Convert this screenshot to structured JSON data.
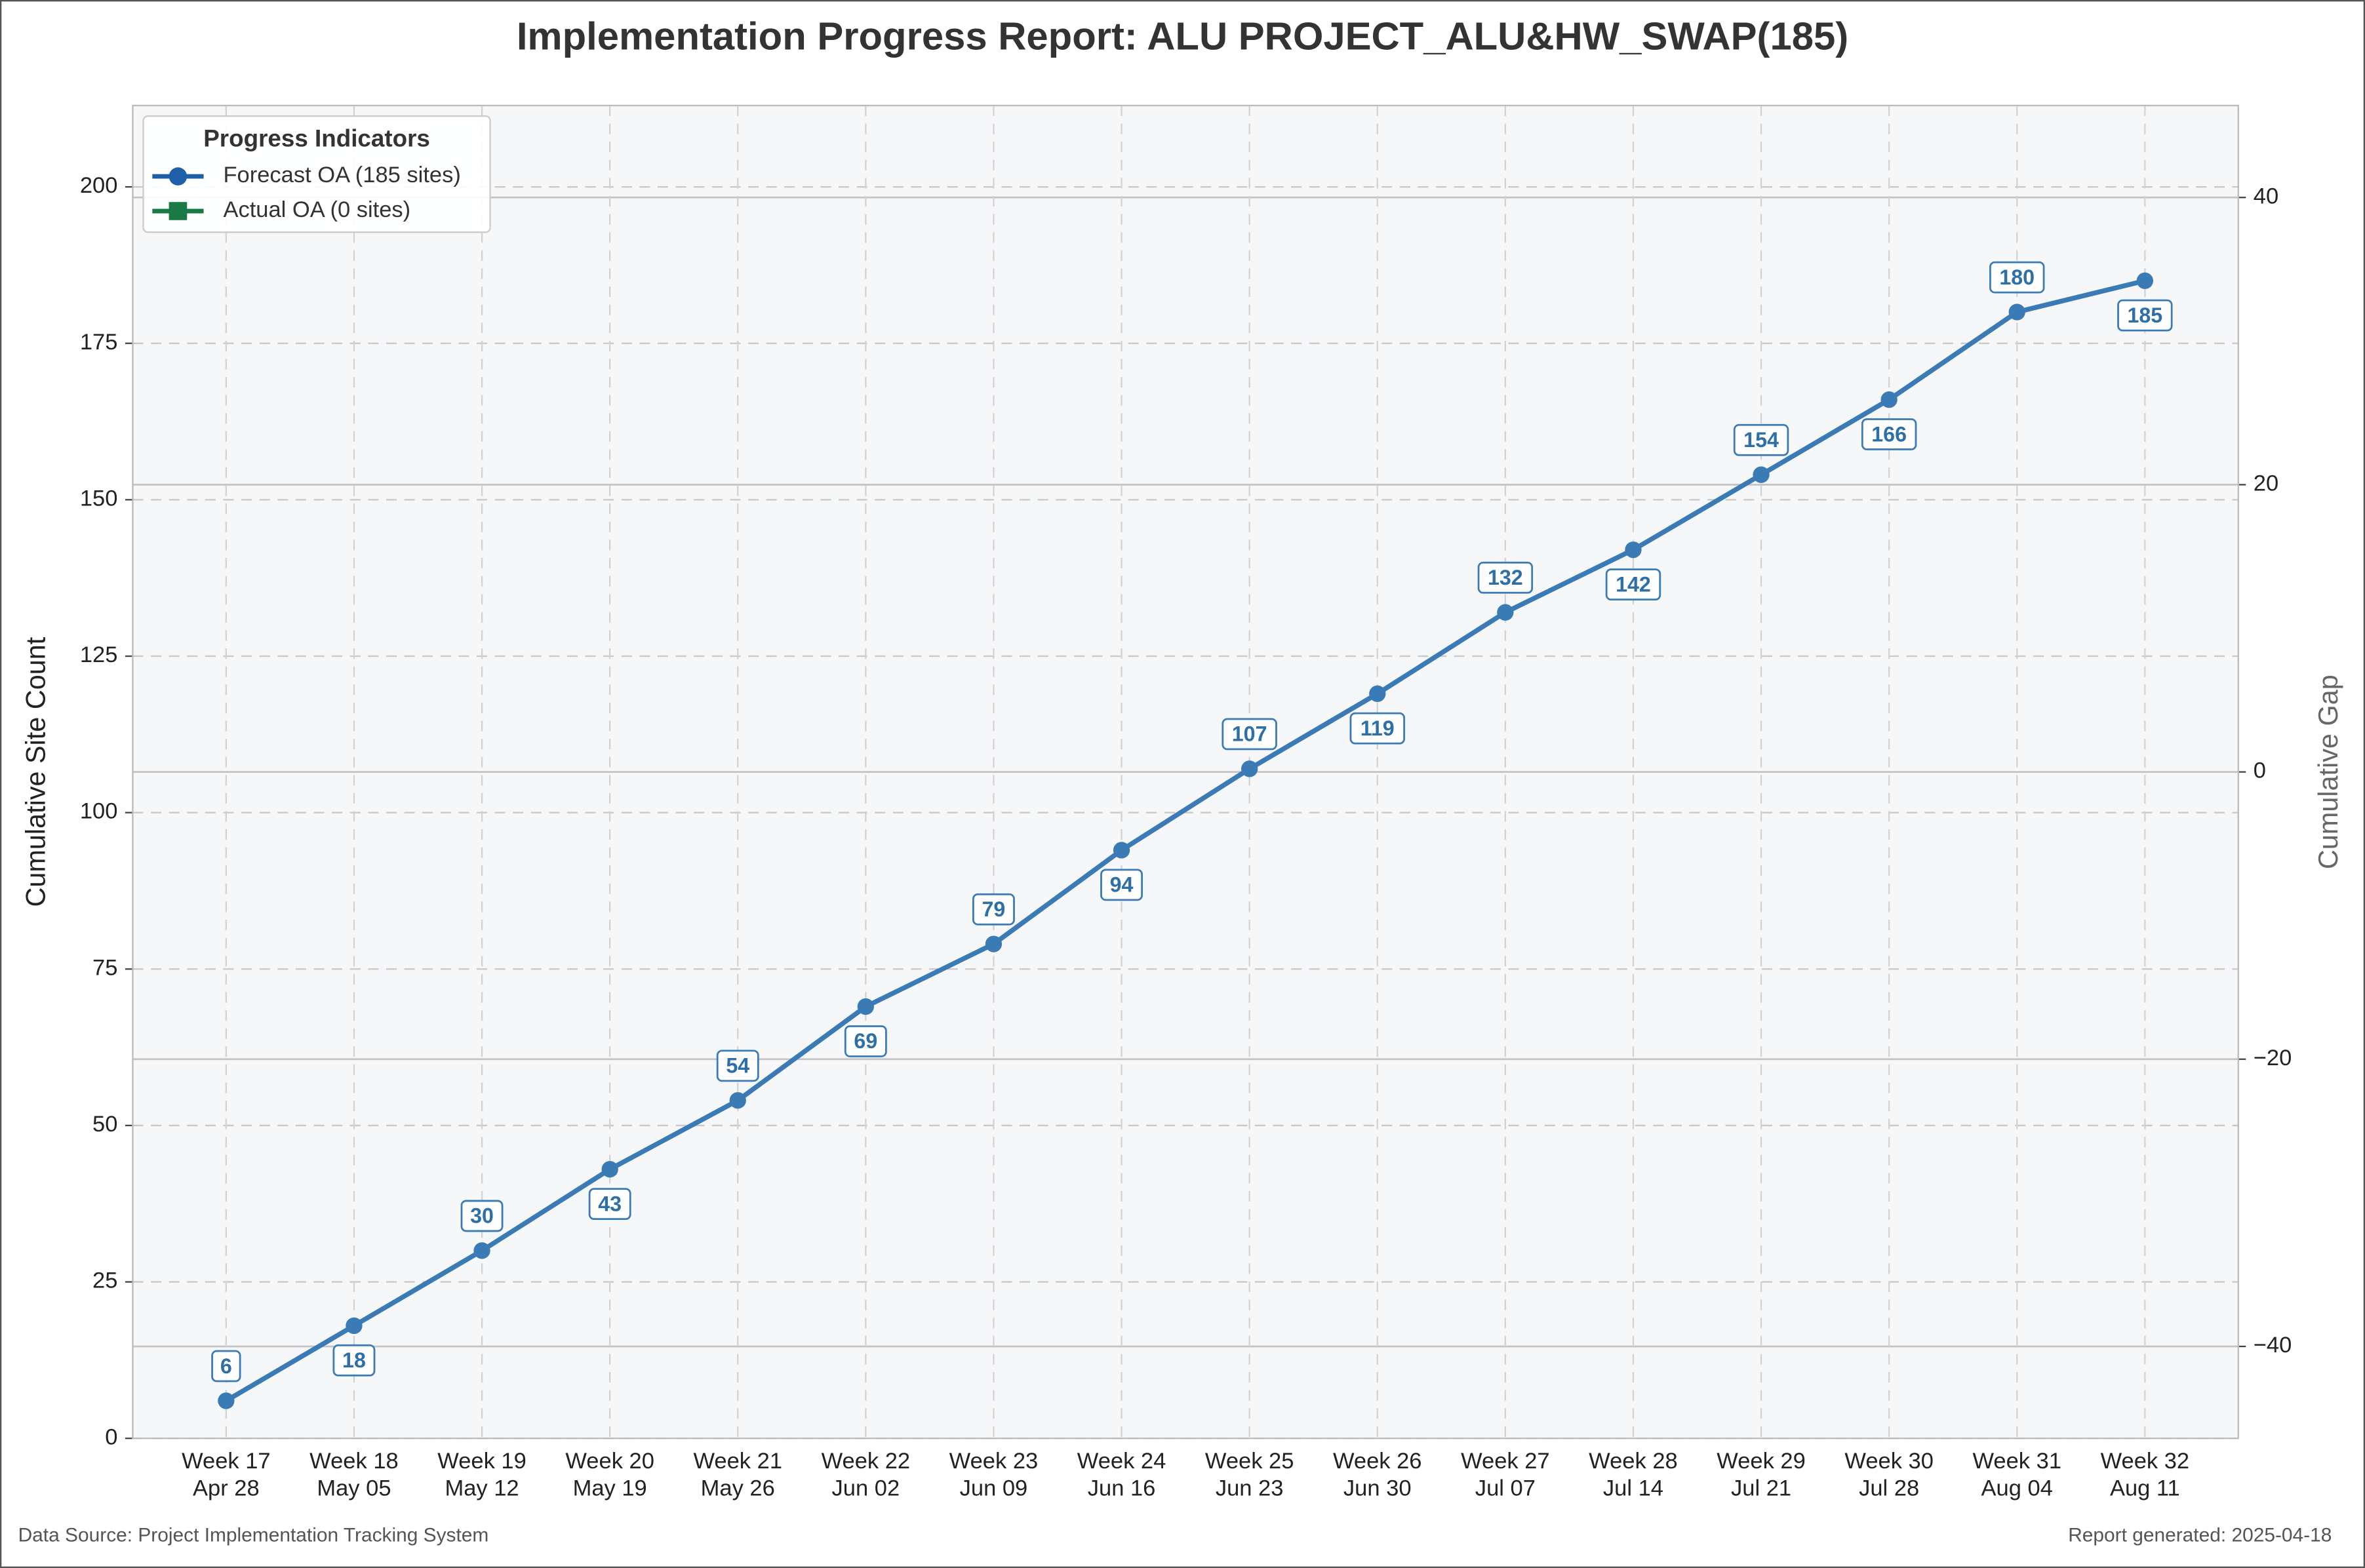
{
  "chart_data": {
    "type": "line",
    "title": "Implementation Progress Report: ALU PROJECT_ALU&HW_SWAP(185)",
    "ylabel": "Cumulative Site Count",
    "y2label": "Cumulative Gap",
    "categories": [
      "Week 17",
      "Week 18",
      "Week 19",
      "Week 20",
      "Week 21",
      "Week 22",
      "Week 23",
      "Week 24",
      "Week 25",
      "Week 26",
      "Week 27",
      "Week 28",
      "Week 29",
      "Week 30",
      "Week 31",
      "Week 32"
    ],
    "dates": [
      "Apr 28",
      "May 05",
      "May 12",
      "May 19",
      "May 26",
      "Jun 02",
      "Jun 09",
      "Jun 16",
      "Jun 23",
      "Jun 30",
      "Jul 07",
      "Jul 14",
      "Jul 21",
      "Jul 28",
      "Aug 04",
      "Aug 11"
    ],
    "series": [
      {
        "name": "Forecast OA (185 sites)",
        "color": "#3a7ab5",
        "legend_color": "#1f5fa8",
        "marker": "circle",
        "values": [
          6,
          18,
          30,
          43,
          54,
          69,
          79,
          94,
          107,
          119,
          132,
          142,
          154,
          166,
          180,
          185
        ]
      },
      {
        "name": "Actual OA (0 sites)",
        "color": "#1a7a45",
        "marker": "square",
        "values": [
          null,
          null,
          null,
          null,
          null,
          null,
          null,
          null,
          null,
          null,
          null,
          null,
          null,
          null,
          null,
          null
        ]
      }
    ],
    "legend_title": "Progress Indicators",
    "legend": "upper left",
    "ylim": [
      0,
      213
    ],
    "yticks": [
      0,
      25,
      50,
      75,
      100,
      125,
      150,
      175,
      200
    ],
    "y2lim": [
      -46.4,
      46.4
    ],
    "y2ticks": [
      {
        "value": -40,
        "label": "−40"
      },
      {
        "value": -20,
        "label": "−20"
      },
      0,
      20,
      40
    ],
    "grid": true,
    "footer_left": "Data Source: Project Implementation Tracking System",
    "footer_right": "Report generated: 2025-04-18"
  }
}
